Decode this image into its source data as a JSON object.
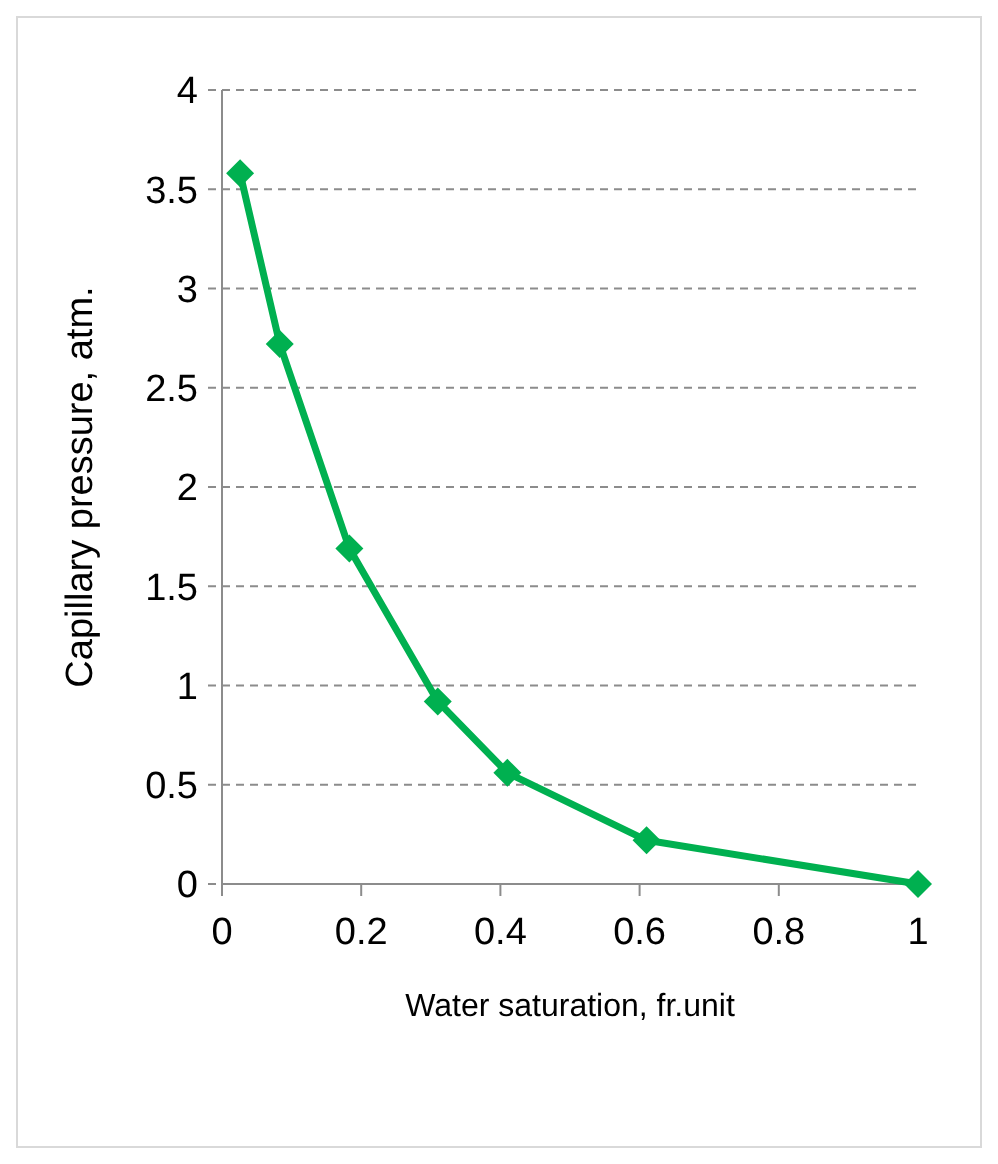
{
  "chart_data": {
    "type": "line",
    "xlabel": "Water saturation, fr.unit",
    "ylabel": "Capillary pressure, atm.",
    "x": [
      0.026,
      0.083,
      0.183,
      0.31,
      0.41,
      0.61,
      1
    ],
    "series": [
      {
        "color": "#00b050",
        "values": [
          3.58,
          2.72,
          1.69,
          0.92,
          0.56,
          0.22,
          0
        ]
      }
    ],
    "xlim": [
      0,
      1
    ],
    "xticks": [
      0,
      0.2,
      0.4,
      0.6,
      0.8,
      1
    ],
    "ylim": [
      0,
      4
    ],
    "yticks": [
      0,
      0.5,
      1,
      1.5,
      2,
      2.5,
      3,
      3.5,
      4
    ],
    "grid": "y",
    "marker": "diamond",
    "line_style": "solid"
  }
}
